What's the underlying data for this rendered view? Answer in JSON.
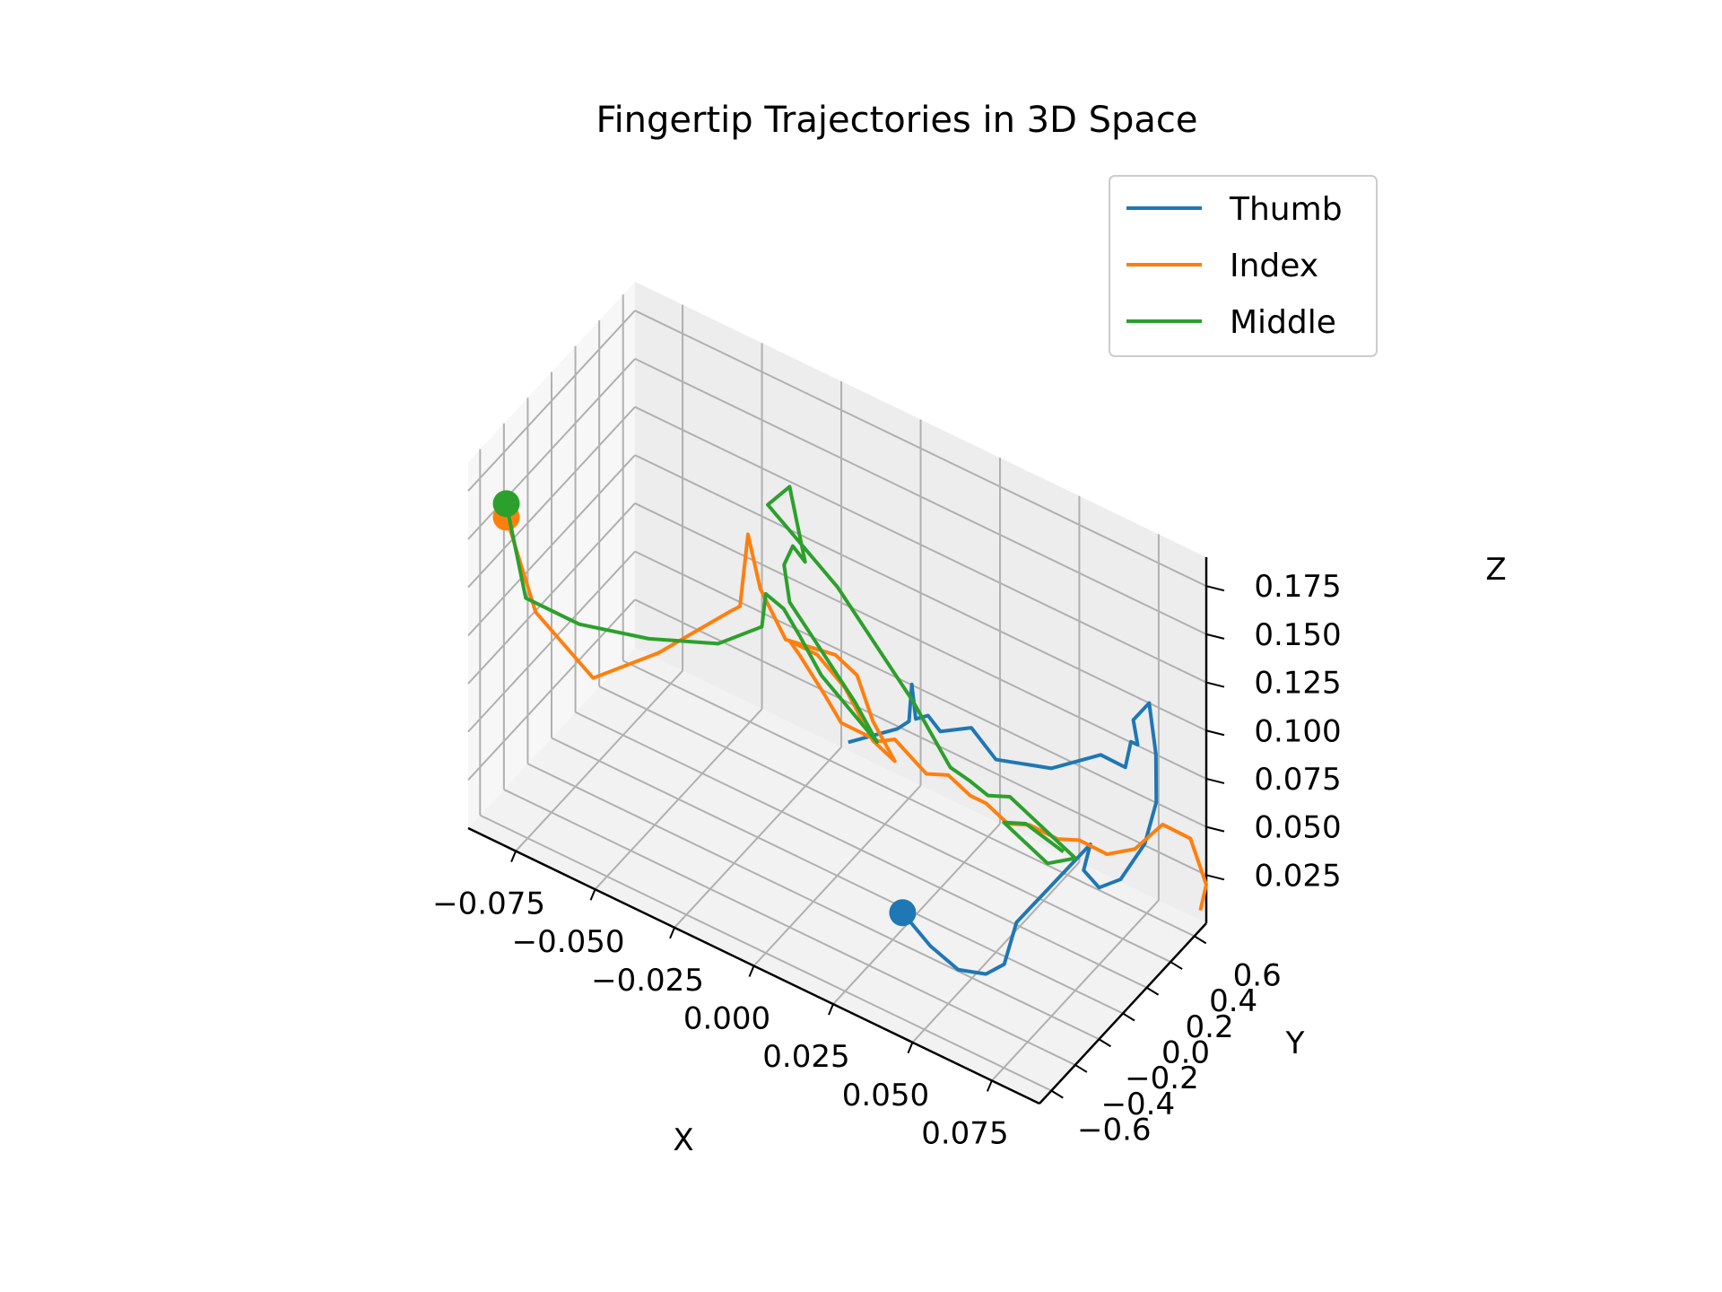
{
  "chart_data": {
    "type": "line",
    "projection": "3d",
    "title": "Fingertip Trajectories in 3D Space",
    "xlabel": "X",
    "ylabel": "Y",
    "zlabel": "Z",
    "xlim": [
      -0.09,
      0.09
    ],
    "ylim": [
      -0.7,
      0.7
    ],
    "zlim": [
      0.0,
      0.19
    ],
    "xticks": [
      "−0.075",
      "−0.050",
      "−0.025",
      "0.000",
      "0.025",
      "0.050",
      "0.075"
    ],
    "yticks": [
      "−0.6",
      "−0.4",
      "−0.2",
      "0.0",
      "0.2",
      "0.4",
      "0.6"
    ],
    "zticks": [
      "0.025",
      "0.050",
      "0.075",
      "0.100",
      "0.125",
      "0.150",
      "0.175"
    ],
    "grid": true,
    "legend_position": "top-right",
    "series": [
      {
        "name": "Thumb",
        "color": "#1f77b4",
        "start_marker": [
          0.045,
          -0.65,
          0.06
        ],
        "points": [
          [
            0.045,
            -0.65,
            0.06
          ],
          [
            0.05,
            -0.55,
            0.04
          ],
          [
            0.055,
            -0.45,
            0.025
          ],
          [
            0.06,
            -0.35,
            0.02
          ],
          [
            0.062,
            -0.25,
            0.02
          ],
          [
            0.064,
            -0.2,
            0.04
          ],
          [
            0.068,
            -0.1,
            0.05
          ],
          [
            0.072,
            0.0,
            0.06
          ],
          [
            0.076,
            0.1,
            0.07
          ],
          [
            0.072,
            0.15,
            0.05
          ],
          [
            0.075,
            0.2,
            0.04
          ],
          [
            0.078,
            0.3,
            0.04
          ],
          [
            0.08,
            0.45,
            0.05
          ],
          [
            0.078,
            0.6,
            0.06
          ],
          [
            0.076,
            0.65,
            0.08
          ],
          [
            0.072,
            0.7,
            0.1
          ],
          [
            0.07,
            0.62,
            0.095
          ],
          [
            0.074,
            0.55,
            0.09
          ],
          [
            0.07,
            0.6,
            0.085
          ],
          [
            0.072,
            0.5,
            0.08
          ],
          [
            0.068,
            0.4,
            0.09
          ],
          [
            0.06,
            0.2,
            0.09
          ],
          [
            0.05,
            0.0,
            0.1
          ],
          [
            0.048,
            -0.05,
            0.11
          ],
          [
            0.046,
            -0.1,
            0.12
          ],
          [
            0.04,
            -0.2,
            0.12
          ],
          [
            0.038,
            -0.25,
            0.13
          ],
          [
            0.036,
            -0.3,
            0.13
          ],
          [
            0.034,
            -0.28,
            0.145
          ],
          [
            0.035,
            -0.33,
            0.13
          ],
          [
            0.034,
            -0.4,
            0.13
          ],
          [
            0.03,
            -0.5,
            0.13
          ],
          [
            0.026,
            -0.6,
            0.13
          ]
        ]
      },
      {
        "name": "Index",
        "color": "#ff7f0e",
        "start_marker": [
          -0.09,
          -0.38,
          0.14
        ],
        "points": [
          [
            -0.09,
            -0.38,
            0.14
          ],
          [
            -0.08,
            -0.4,
            0.1
          ],
          [
            -0.06,
            -0.45,
            0.085
          ],
          [
            -0.045,
            -0.3,
            0.1
          ],
          [
            -0.03,
            -0.1,
            0.12
          ],
          [
            -0.025,
            -0.15,
            0.13
          ],
          [
            -0.03,
            0.05,
            0.15
          ],
          [
            -0.028,
            0.1,
            0.12
          ],
          [
            -0.02,
            0.1,
            0.1
          ],
          [
            -0.01,
            0.25,
            0.09
          ],
          [
            -0.005,
            0.3,
            0.08
          ],
          [
            0.0,
            0.3,
            0.06
          ],
          [
            0.005,
            0.35,
            0.04
          ],
          [
            0.0,
            0.3,
            0.05
          ],
          [
            -0.005,
            0.2,
            0.08
          ],
          [
            -0.01,
            0.1,
            0.1
          ],
          [
            -0.015,
            0.0,
            0.11
          ],
          [
            -0.01,
            -0.05,
            0.11
          ],
          [
            0.0,
            -0.1,
            0.1
          ],
          [
            0.005,
            -0.1,
            0.09
          ],
          [
            0.015,
            -0.05,
            0.085
          ],
          [
            0.02,
            -0.05,
            0.09
          ],
          [
            0.03,
            -0.05,
            0.08
          ],
          [
            0.035,
            0.0,
            0.08
          ],
          [
            0.04,
            0.05,
            0.07
          ],
          [
            0.045,
            0.05,
            0.07
          ],
          [
            0.05,
            0.1,
            0.06
          ],
          [
            0.055,
            0.15,
            0.06
          ],
          [
            0.06,
            0.25,
            0.05
          ],
          [
            0.065,
            0.3,
            0.05
          ],
          [
            0.07,
            0.4,
            0.04
          ],
          [
            0.075,
            0.5,
            0.04
          ],
          [
            0.08,
            0.6,
            0.05
          ],
          [
            0.085,
            0.7,
            0.04
          ],
          [
            0.09,
            0.7,
            0.02
          ],
          [
            0.09,
            0.65,
            0.01
          ]
        ]
      },
      {
        "name": "Middle",
        "color": "#2ca02c",
        "start_marker": [
          -0.09,
          -0.38,
          0.147
        ],
        "points": [
          [
            -0.09,
            -0.38,
            0.147
          ],
          [
            -0.085,
            -0.35,
            0.1
          ],
          [
            -0.07,
            -0.3,
            0.095
          ],
          [
            -0.05,
            -0.25,
            0.1
          ],
          [
            -0.03,
            -0.2,
            0.11
          ],
          [
            -0.02,
            -0.1,
            0.12
          ],
          [
            -0.018,
            -0.12,
            0.14
          ],
          [
            -0.015,
            -0.05,
            0.13
          ],
          [
            -0.01,
            -0.05,
            0.12
          ],
          [
            -0.005,
            0.0,
            0.1
          ],
          [
            0.0,
            0.1,
            0.08
          ],
          [
            0.005,
            0.2,
            0.06
          ],
          [
            0.0,
            0.15,
            0.08
          ],
          [
            -0.008,
            0.05,
            0.11
          ],
          [
            -0.015,
            0.0,
            0.13
          ],
          [
            -0.016,
            -0.02,
            0.15
          ],
          [
            -0.014,
            0.0,
            0.16
          ],
          [
            -0.012,
            0.05,
            0.15
          ],
          [
            -0.015,
            0.0,
            0.19
          ],
          [
            -0.02,
            -0.05,
            0.18
          ],
          [
            0.0,
            0.0,
            0.15
          ],
          [
            0.02,
            0.1,
            0.1
          ],
          [
            0.03,
            0.15,
            0.07
          ],
          [
            0.035,
            0.18,
            0.065
          ],
          [
            0.04,
            0.2,
            0.06
          ],
          [
            0.042,
            0.22,
            0.06
          ],
          [
            0.045,
            0.25,
            0.06
          ],
          [
            0.05,
            0.3,
            0.05
          ],
          [
            0.055,
            0.35,
            0.04
          ],
          [
            0.06,
            0.4,
            0.03
          ],
          [
            0.055,
            0.3,
            0.03
          ],
          [
            0.05,
            0.25,
            0.04
          ],
          [
            0.045,
            0.2,
            0.05
          ],
          [
            0.05,
            0.25,
            0.05
          ],
          [
            0.06,
            0.3,
            0.04
          ]
        ]
      }
    ]
  }
}
